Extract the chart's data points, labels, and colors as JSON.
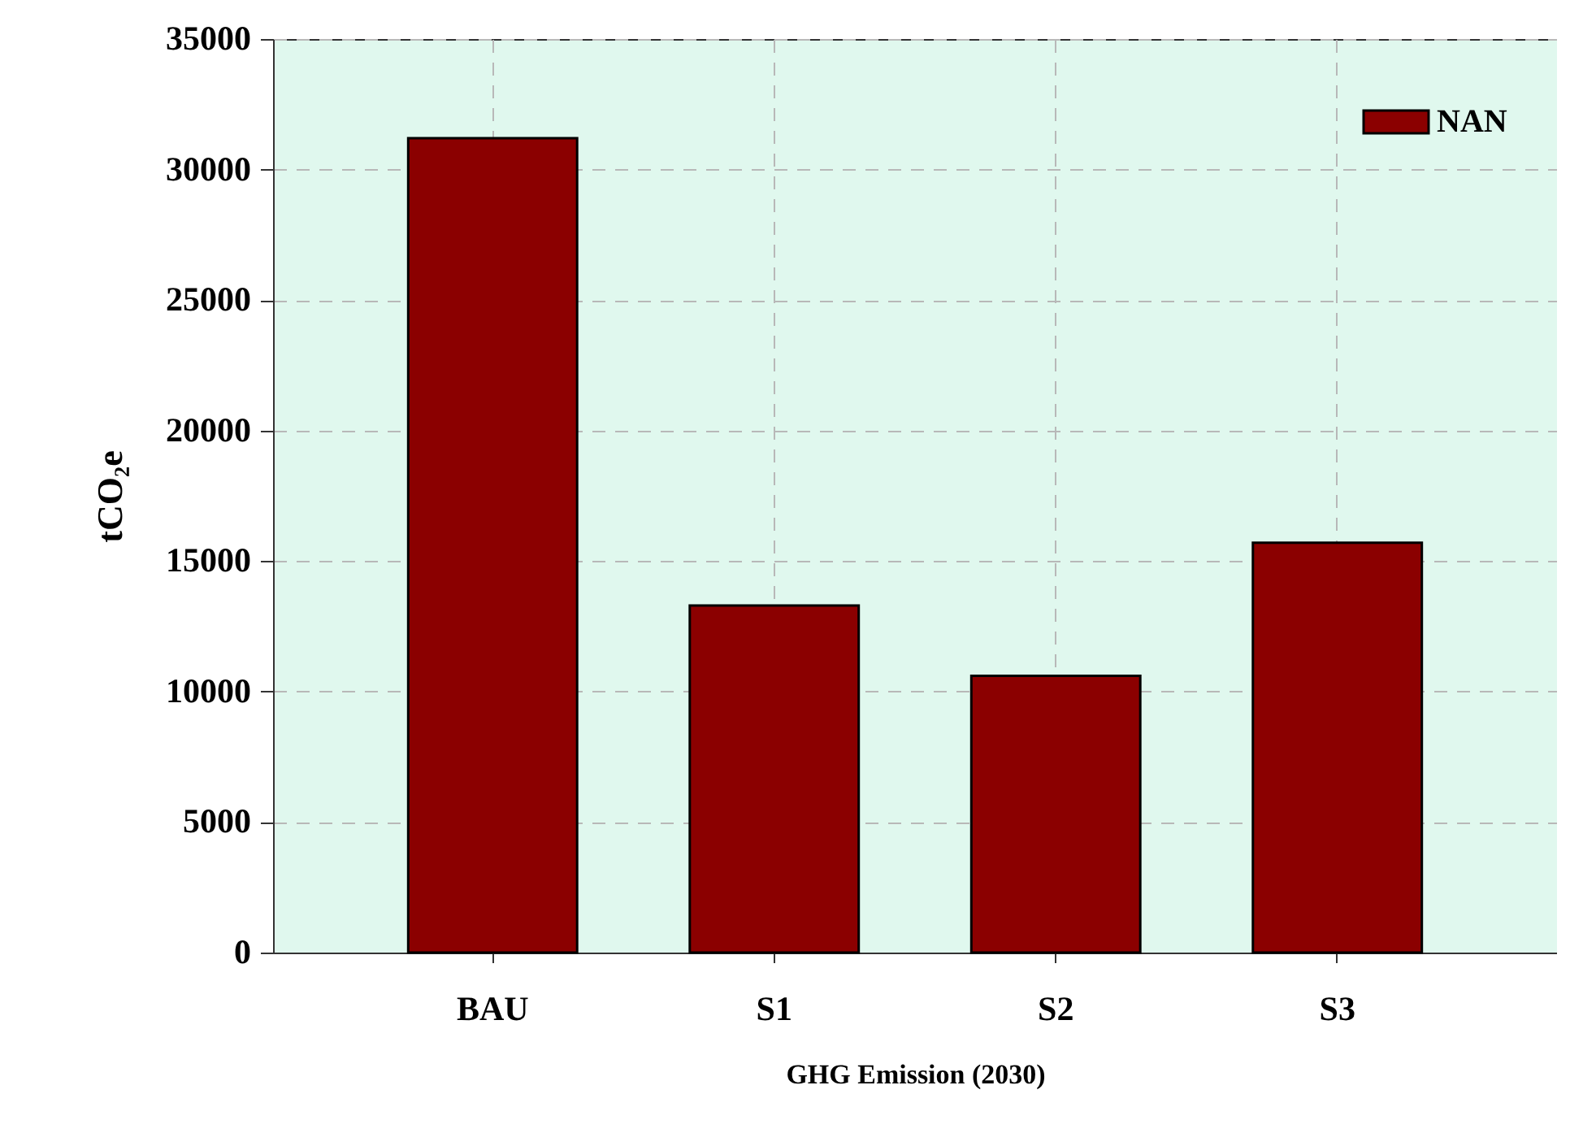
{
  "chart_data": {
    "type": "bar",
    "xlabel": "GHG Emission (2030)",
    "ylabel": "tCO₂e",
    "categories": [
      "BAU",
      "S1",
      "S2",
      "S3"
    ],
    "series": [
      {
        "name": "NAN",
        "color": "#8b0000",
        "values": [
          31200,
          13300,
          10600,
          15700
        ]
      }
    ],
    "ylim": [
      0,
      35000
    ],
    "yticks": [
      0,
      5000,
      10000,
      15000,
      20000,
      25000,
      30000,
      35000
    ],
    "grid": true,
    "legend": "top right"
  }
}
